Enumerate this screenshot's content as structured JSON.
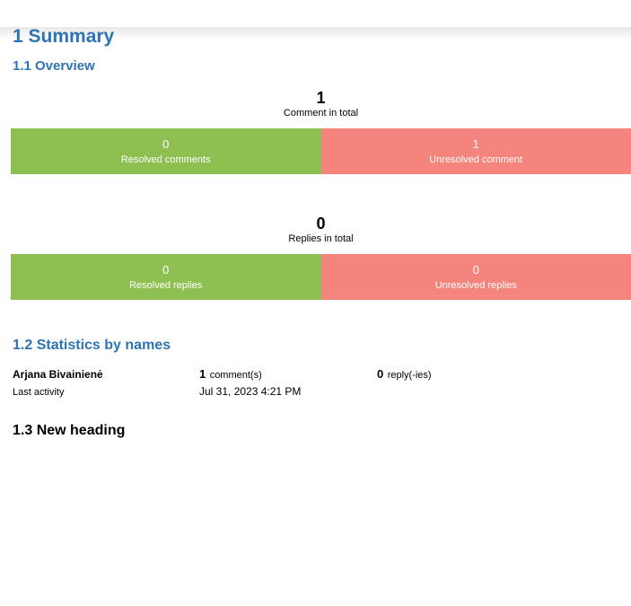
{
  "headings": {
    "summary": "1 Summary",
    "overview": "1.1 Overview",
    "statistics": "1.2 Statistics by names",
    "new_heading": "1.3 New heading"
  },
  "charts": [
    {
      "total": "1",
      "total_label": "Comment in total",
      "left": {
        "value": "0",
        "label": "Resolved comments"
      },
      "right": {
        "value": "1",
        "label": "Unresolved comment"
      }
    },
    {
      "total": "0",
      "total_label": "Replies in total",
      "left": {
        "value": "0",
        "label": "Resolved replies"
      },
      "right": {
        "value": "0",
        "label": "Unresolved replies"
      }
    }
  ],
  "statistics": {
    "name": "Arjana Bivainienė",
    "comments_count": "1",
    "comments_label": "comment(s)",
    "replies_count": "0",
    "replies_label": "reply(-ies)",
    "last_activity_label": "Last activity",
    "last_activity_value": "Jul 31, 2023 4:21 PM"
  },
  "colors": {
    "heading_blue": "#2e74b5",
    "resolved_green": "#8dc051",
    "unresolved_red": "#f5847c",
    "bar_text": "#ffffff"
  },
  "chart_data": [
    {
      "type": "bar",
      "title": "Comment in total",
      "total": 1,
      "categories": [
        "Resolved comments",
        "Unresolved comment"
      ],
      "values": [
        0,
        1
      ],
      "colors": [
        "#8dc051",
        "#f5847c"
      ],
      "layout": "two equal-width horizontal segments, value over label centered in each, white text, no axes, no legend"
    },
    {
      "type": "bar",
      "title": "Replies in total",
      "total": 0,
      "categories": [
        "Resolved replies",
        "Unresolved replies"
      ],
      "values": [
        0,
        0
      ],
      "colors": [
        "#8dc051",
        "#f5847c"
      ],
      "layout": "two equal-width horizontal segments, value over label centered in each, white text, no axes, no legend"
    }
  ]
}
